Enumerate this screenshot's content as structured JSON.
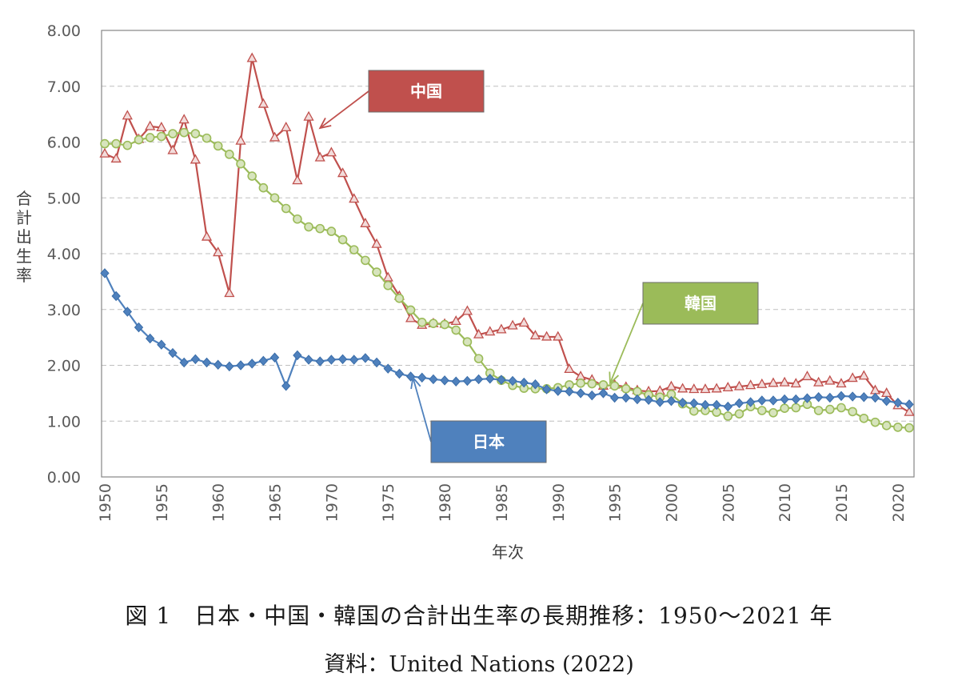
{
  "chart_data": {
    "type": "line",
    "xlabel": "年次",
    "ylabel": "合計出生率",
    "ylim": [
      0,
      8
    ],
    "xlim": [
      1950,
      2021
    ],
    "yticks": [
      "0.00",
      "1.00",
      "2.00",
      "3.00",
      "4.00",
      "5.00",
      "6.00",
      "7.00",
      "8.00"
    ],
    "xticks": [
      "1950",
      "1955",
      "1960",
      "1965",
      "1970",
      "1975",
      "1980",
      "1985",
      "1990",
      "1995",
      "2000",
      "2005",
      "2010",
      "2015",
      "2020"
    ],
    "grid": "horizontal dashed",
    "x": [
      1950,
      1951,
      1952,
      1953,
      1954,
      1955,
      1956,
      1957,
      1958,
      1959,
      1960,
      1961,
      1962,
      1963,
      1964,
      1965,
      1966,
      1967,
      1968,
      1969,
      1970,
      1971,
      1972,
      1973,
      1974,
      1975,
      1976,
      1977,
      1978,
      1979,
      1980,
      1981,
      1982,
      1983,
      1984,
      1985,
      1986,
      1987,
      1988,
      1989,
      1990,
      1991,
      1992,
      1993,
      1994,
      1995,
      1996,
      1997,
      1998,
      1999,
      2000,
      2001,
      2002,
      2003,
      2004,
      2005,
      2006,
      2007,
      2008,
      2009,
      2010,
      2011,
      2012,
      2013,
      2014,
      2015,
      2016,
      2017,
      2018,
      2019,
      2020,
      2021
    ],
    "series": [
      {
        "name": "日本",
        "color": "#4f81bd",
        "marker": "diamond",
        "values": [
          3.65,
          3.24,
          2.96,
          2.68,
          2.48,
          2.37,
          2.22,
          2.05,
          2.11,
          2.05,
          2.01,
          1.98,
          2.0,
          2.03,
          2.08,
          2.14,
          1.63,
          2.18,
          2.1,
          2.07,
          2.1,
          2.11,
          2.1,
          2.13,
          2.05,
          1.94,
          1.85,
          1.8,
          1.78,
          1.75,
          1.73,
          1.71,
          1.72,
          1.75,
          1.76,
          1.74,
          1.72,
          1.69,
          1.66,
          1.57,
          1.54,
          1.53,
          1.5,
          1.46,
          1.5,
          1.42,
          1.42,
          1.39,
          1.38,
          1.34,
          1.36,
          1.33,
          1.32,
          1.29,
          1.29,
          1.26,
          1.32,
          1.34,
          1.37,
          1.37,
          1.39,
          1.39,
          1.41,
          1.43,
          1.42,
          1.45,
          1.44,
          1.43,
          1.42,
          1.36,
          1.33,
          1.3
        ]
      },
      {
        "name": "中国",
        "color": "#c0504d",
        "marker": "triangle",
        "values": [
          5.79,
          5.7,
          6.47,
          6.05,
          6.28,
          6.26,
          5.85,
          6.4,
          5.68,
          4.3,
          4.02,
          3.29,
          6.02,
          7.5,
          6.68,
          6.08,
          6.26,
          5.31,
          6.45,
          5.72,
          5.81,
          5.44,
          4.98,
          4.54,
          4.17,
          3.57,
          3.24,
          2.84,
          2.72,
          2.75,
          2.74,
          2.79,
          2.97,
          2.55,
          2.6,
          2.64,
          2.71,
          2.76,
          2.53,
          2.51,
          2.51,
          1.93,
          1.8,
          1.74,
          1.63,
          1.65,
          1.61,
          1.55,
          1.53,
          1.54,
          1.62,
          1.58,
          1.57,
          1.57,
          1.58,
          1.6,
          1.62,
          1.64,
          1.66,
          1.68,
          1.69,
          1.67,
          1.8,
          1.69,
          1.72,
          1.67,
          1.77,
          1.81,
          1.55,
          1.5,
          1.28,
          1.16
        ]
      },
      {
        "name": "韓国",
        "color": "#9bbb59",
        "marker": "circle",
        "values": [
          5.97,
          5.97,
          5.94,
          6.04,
          6.08,
          6.1,
          6.15,
          6.17,
          6.15,
          6.07,
          5.93,
          5.78,
          5.61,
          5.39,
          5.18,
          5.0,
          4.81,
          4.62,
          4.48,
          4.45,
          4.4,
          4.25,
          4.07,
          3.88,
          3.67,
          3.43,
          3.2,
          2.99,
          2.77,
          2.75,
          2.73,
          2.63,
          2.42,
          2.12,
          1.86,
          1.73,
          1.64,
          1.59,
          1.58,
          1.58,
          1.6,
          1.65,
          1.68,
          1.67,
          1.65,
          1.63,
          1.58,
          1.53,
          1.47,
          1.43,
          1.48,
          1.31,
          1.18,
          1.19,
          1.16,
          1.09,
          1.13,
          1.26,
          1.19,
          1.15,
          1.23,
          1.24,
          1.3,
          1.19,
          1.21,
          1.24,
          1.17,
          1.05,
          0.98,
          0.92,
          0.89,
          0.88
        ]
      }
    ],
    "callouts": [
      {
        "name": "中国",
        "color": "#c0504d"
      },
      {
        "name": "韓国",
        "color": "#9bbb59"
      },
      {
        "name": "日本",
        "color": "#4f81bd"
      }
    ]
  },
  "caption": {
    "line1": "図 1　日本・中国・韓国の合計出生率の長期推移：1950～2021 年",
    "line2": "資料：United Nations (2022)"
  }
}
